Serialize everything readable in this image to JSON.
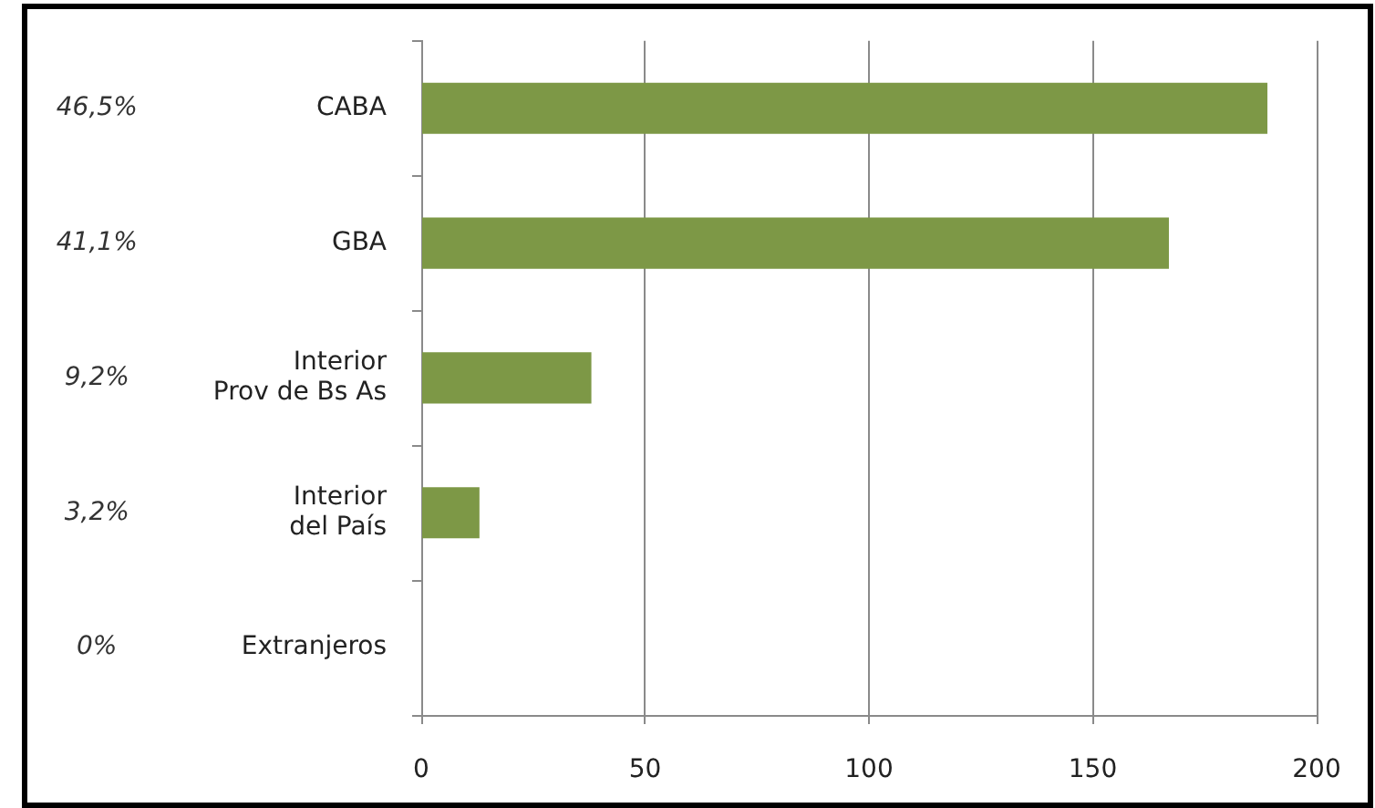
{
  "chart_data": {
    "type": "bar",
    "orientation": "horizontal",
    "categories": [
      "CABA",
      "GBA",
      "Interior\nProv de Bs As",
      "Interior\ndel País",
      "Extranjeros"
    ],
    "values": [
      189,
      167,
      38,
      13,
      0
    ],
    "annotations": [
      "46,5%",
      "41,1%",
      "9,2%",
      "3,2%",
      "0%"
    ],
    "color": "#7d9846",
    "xlim": [
      0,
      200
    ],
    "xticks": [
      0,
      50,
      100,
      150,
      200
    ],
    "grid": "x"
  }
}
